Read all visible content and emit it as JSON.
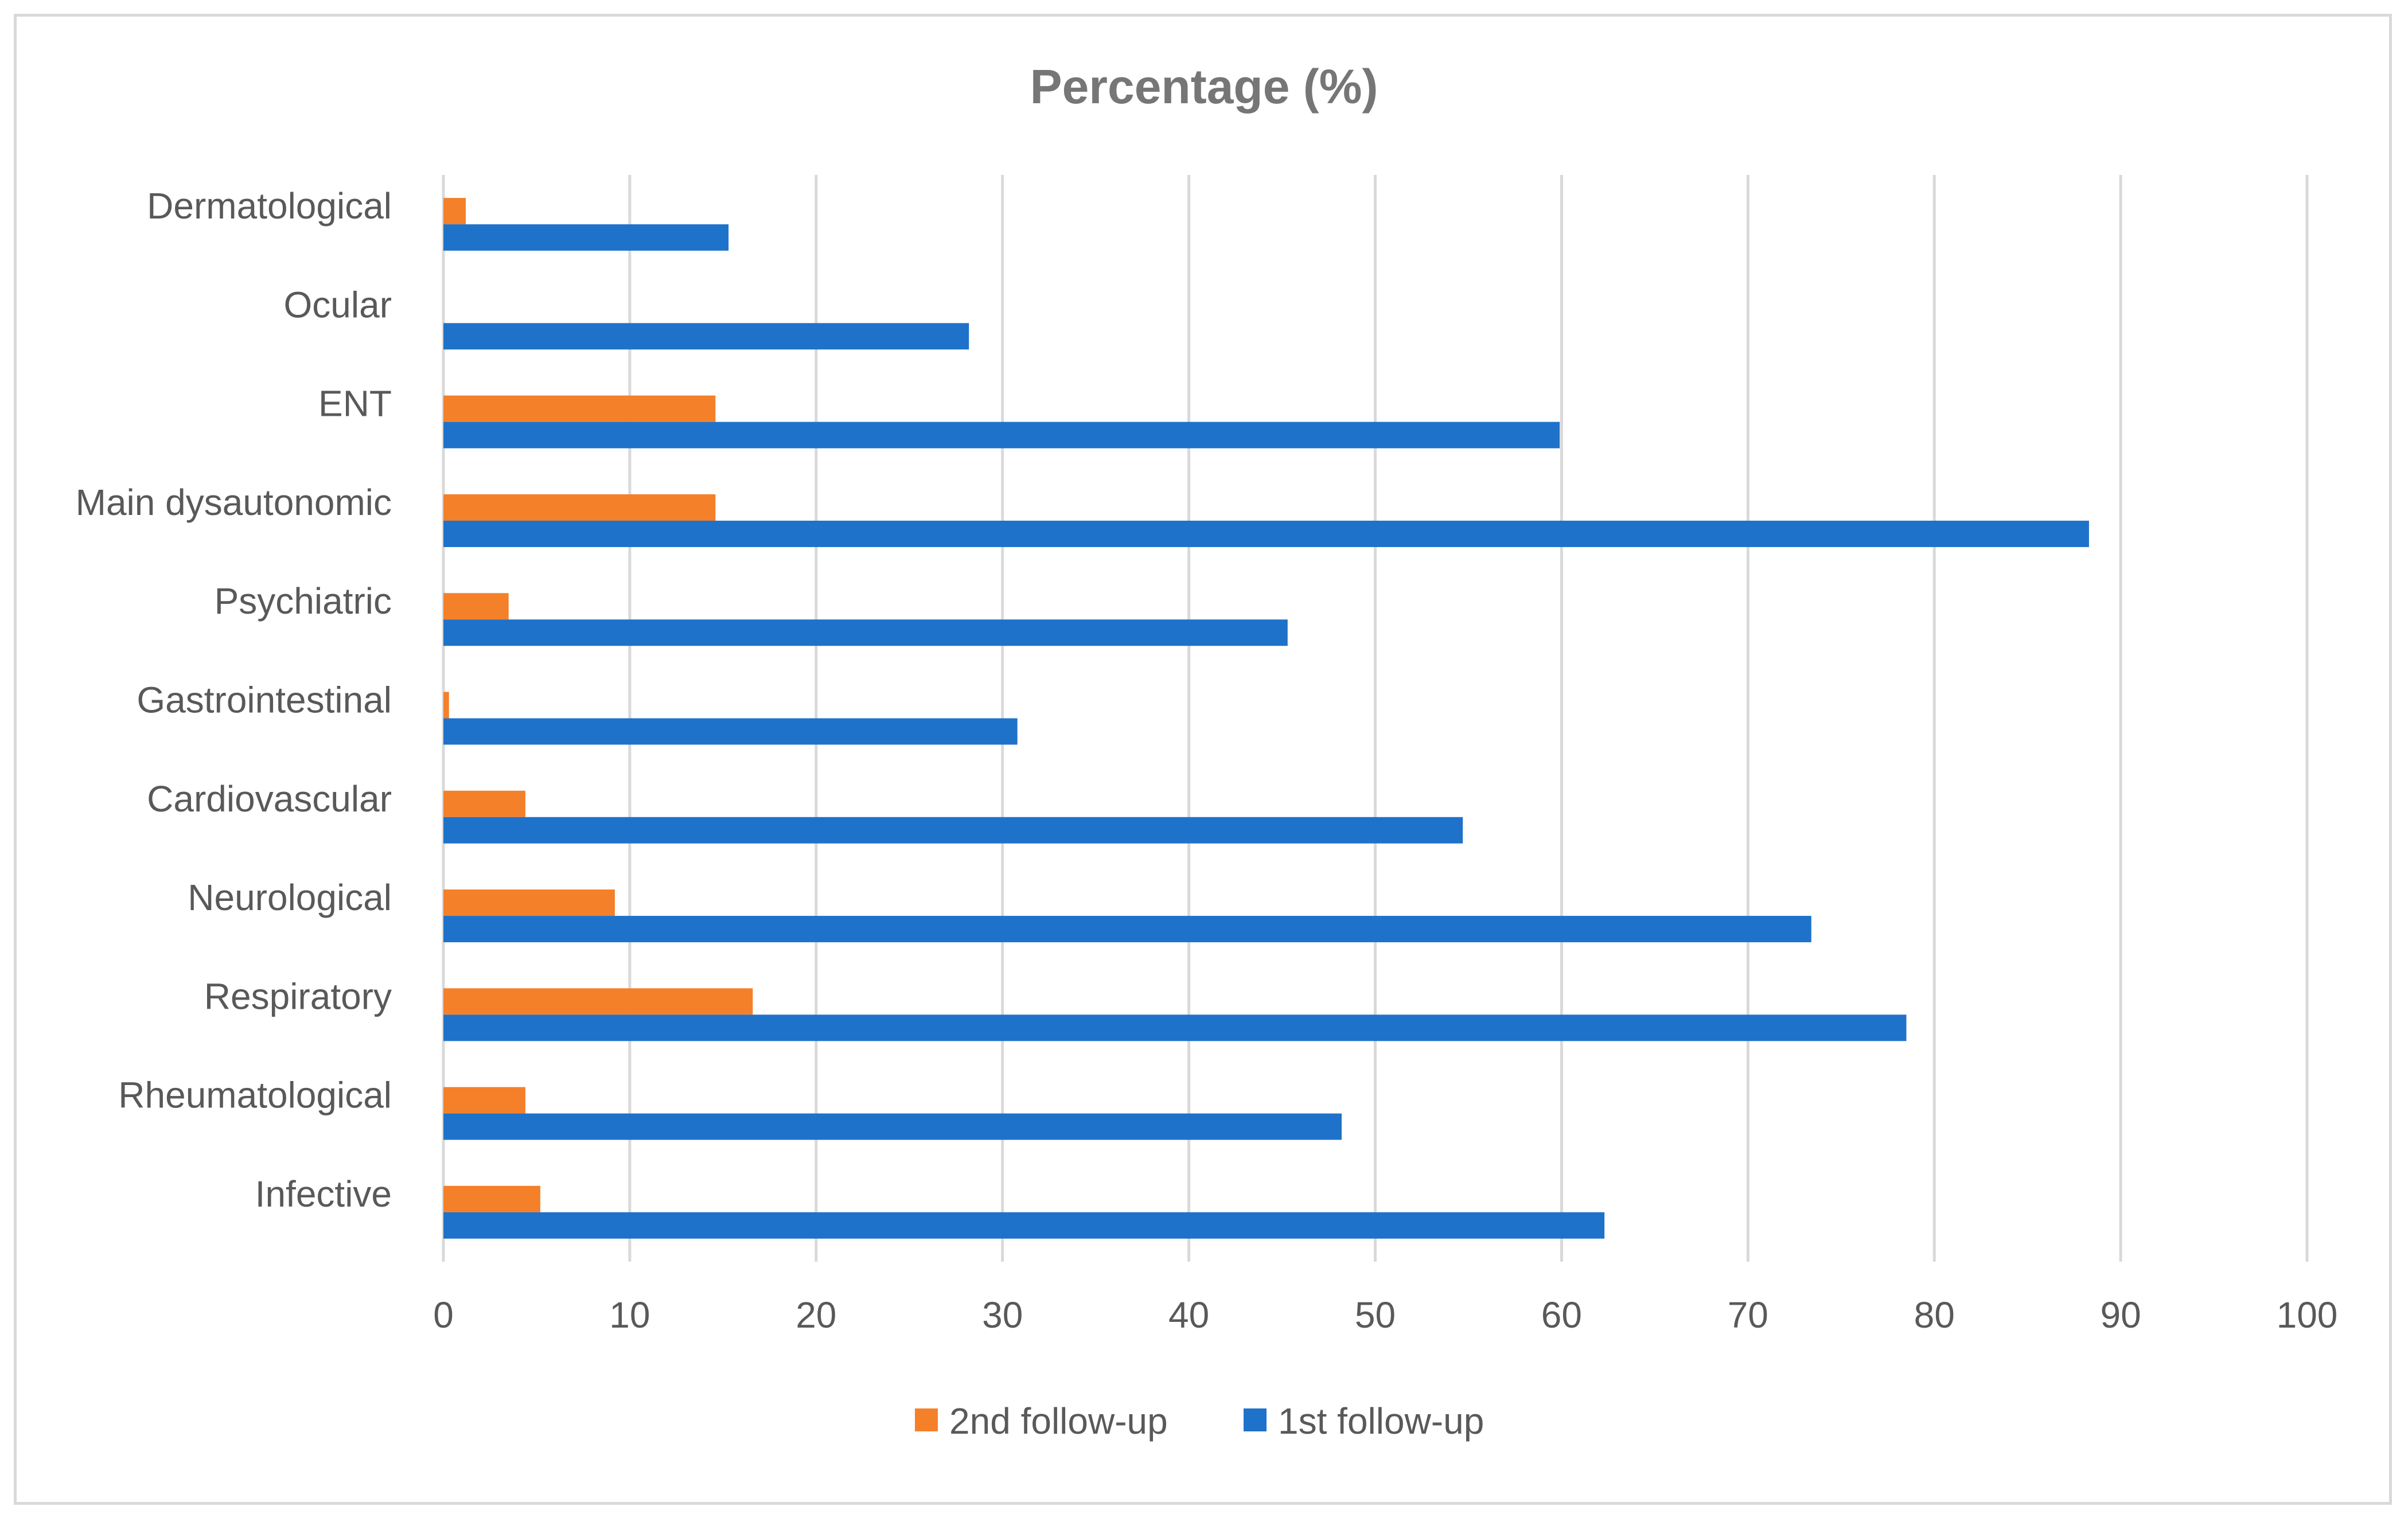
{
  "chart_data": {
    "type": "bar",
    "orientation": "horizontal",
    "title": "Percentage (%)",
    "xlabel": "",
    "ylabel": "",
    "xlim": [
      0,
      100
    ],
    "x_ticks": [
      0,
      10,
      20,
      30,
      40,
      50,
      60,
      70,
      80,
      90,
      100
    ],
    "grid": true,
    "legend_position": "bottom",
    "categories": [
      "Dermatological",
      "Ocular",
      "ENT",
      "Main dysautonomic",
      "Psychiatric",
      "Gastrointestinal",
      "Cardiovascular",
      "Neurological",
      "Respiratory",
      "Rheumatological",
      "Infective"
    ],
    "series": [
      {
        "name": "2nd follow-up",
        "color": "#f5802a",
        "values": [
          1.2,
          0,
          14.6,
          14.6,
          3.5,
          0.3,
          4.4,
          9.2,
          16.6,
          4.4,
          5.2
        ]
      },
      {
        "name": "1st follow-up",
        "color": "#1f72c9",
        "values": [
          15.3,
          28.2,
          59.9,
          88.3,
          45.3,
          30.8,
          54.7,
          73.4,
          78.5,
          48.2,
          62.3
        ]
      }
    ]
  }
}
